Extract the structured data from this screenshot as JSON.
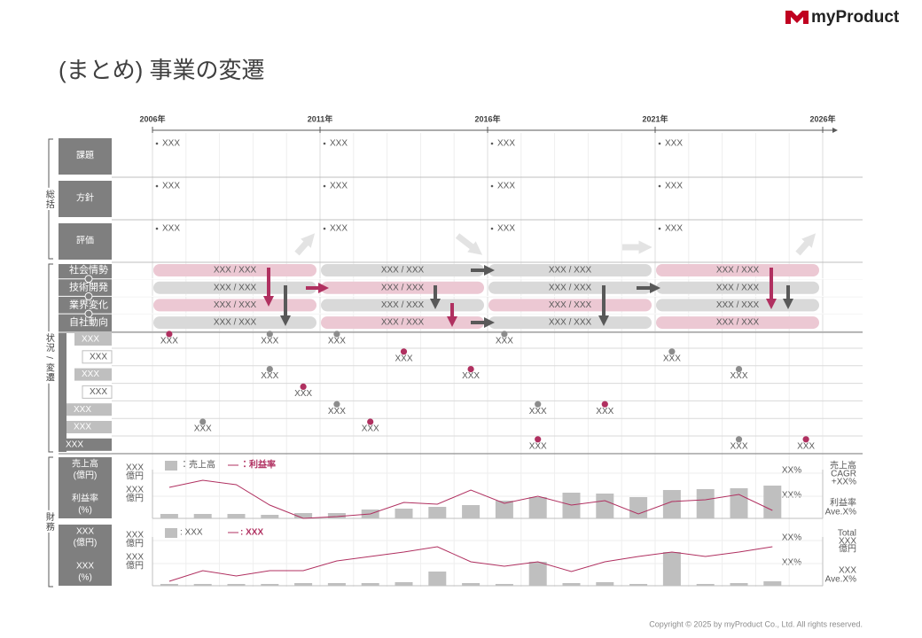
{
  "logo": "myProduct",
  "title": "(まとめ) 事業の変遷",
  "timeline": {
    "xlim": [
      2006,
      2026
    ],
    "xticks": [
      {
        "value": 2006,
        "label": "2006年"
      },
      {
        "value": 2011,
        "label": "2011年"
      },
      {
        "value": 2016,
        "label": "2016年"
      },
      {
        "value": 2021,
        "label": "2021年"
      },
      {
        "value": 2026,
        "label": "2026年"
      }
    ]
  },
  "sections": {
    "summary": "総括",
    "status": "状況 / 変遷",
    "finance": "財務"
  },
  "summary_rows": [
    {
      "label": "課題",
      "items": [
        "XXX",
        "XXX",
        "XXX",
        "XXX"
      ]
    },
    {
      "label": "方針",
      "items": [
        "XXX",
        "XXX",
        "XXX",
        "XXX"
      ]
    },
    {
      "label": "評価",
      "items": [
        "XXX",
        "XXX",
        "XXX",
        "XXX"
      ]
    }
  ],
  "status_rows": [
    {
      "label": "社会情勢",
      "bars": [
        {
          "text": "XXX / XXX",
          "color": "#ecc8d3"
        },
        {
          "text": "XXX / XXX",
          "color": "#d9d9d9"
        },
        {
          "text": "XXX / XXX",
          "color": "#d9d9d9"
        },
        {
          "text": "XXX / XXX",
          "color": "#ecc8d3"
        }
      ]
    },
    {
      "label": "技術開発",
      "bars": [
        {
          "text": "XXX / XXX",
          "color": "#d9d9d9"
        },
        {
          "text": "XXX / XXX",
          "color": "#ecc8d3"
        },
        {
          "text": "XXX / XXX",
          "color": "#d9d9d9"
        },
        {
          "text": "XXX / XXX",
          "color": "#d9d9d9"
        }
      ]
    },
    {
      "label": "業界変化",
      "bars": [
        {
          "text": "XXX / XXX",
          "color": "#ecc8d3"
        },
        {
          "text": "XXX / XXX",
          "color": "#d9d9d9"
        },
        {
          "text": "XXX / XXX",
          "color": "#ecc8d3"
        },
        {
          "text": "XXX / XXX",
          "color": "#d9d9d9"
        }
      ]
    },
    {
      "label": "自社動向",
      "bars": [
        {
          "text": "XXX / XXX",
          "color": "#d9d9d9"
        },
        {
          "text": "XXX / XXX",
          "color": "#ecc8d3"
        },
        {
          "text": "XXX / XXX",
          "color": "#d9d9d9"
        },
        {
          "text": "XXX / XXX",
          "color": "#ecc8d3"
        }
      ]
    }
  ],
  "events": [
    {
      "label": "XXX",
      "points": [
        {
          "year": 2006.5,
          "label": "XXX",
          "color": "#b03060"
        },
        {
          "year": 2009.5,
          "label": "XXX",
          "color": "#8c8c8c"
        },
        {
          "year": 2011.5,
          "label": "XXX",
          "color": "#8c8c8c"
        },
        {
          "year": 2016.5,
          "label": "XXX",
          "color": "#8c8c8c"
        }
      ]
    },
    {
      "label": "XXX",
      "points": [
        {
          "year": 2013.5,
          "label": "XXX",
          "color": "#b03060"
        },
        {
          "year": 2021.5,
          "label": "XXX",
          "color": "#8c8c8c"
        }
      ]
    },
    {
      "label": "XXX",
      "points": [
        {
          "year": 2009.5,
          "label": "XXX",
          "color": "#8c8c8c"
        },
        {
          "year": 2015.5,
          "label": "XXX",
          "color": "#b03060"
        },
        {
          "year": 2023.5,
          "label": "XXX",
          "color": "#8c8c8c"
        }
      ]
    },
    {
      "label": "XXX",
      "points": [
        {
          "year": 2010.5,
          "label": "XXX",
          "color": "#b03060"
        }
      ]
    },
    {
      "label": "XXX",
      "points": [
        {
          "year": 2011.5,
          "label": "XXX",
          "color": "#8c8c8c"
        },
        {
          "year": 2017.5,
          "label": "XXX",
          "color": "#8c8c8c"
        },
        {
          "year": 2019.5,
          "label": "XXX",
          "color": "#b03060"
        }
      ]
    },
    {
      "label": "XXX",
      "points": [
        {
          "year": 2007.5,
          "label": "XXX",
          "color": "#8c8c8c"
        },
        {
          "year": 2012.5,
          "label": "XXX",
          "color": "#b03060"
        }
      ]
    },
    {
      "label": "XXX",
      "points": [
        {
          "year": 2017.5,
          "label": "XXX",
          "color": "#b03060"
        },
        {
          "year": 2023.5,
          "label": "XXX",
          "color": "#8c8c8c"
        },
        {
          "year": 2025.5,
          "label": "XXX",
          "color": "#b03060"
        }
      ]
    }
  ],
  "finance": [
    {
      "type": "bar_line",
      "left_labels": [
        "売上高",
        "(億円)",
        "利益率",
        "(%)"
      ],
      "bar_axis_labels": [
        [
          "XXX",
          "億円"
        ],
        [
          "XXX",
          "億円"
        ]
      ],
      "line_axis_labels": [
        "XX%",
        "XX%"
      ],
      "right_notes": [
        "売上高",
        "CAGR",
        "+XX%",
        "利益率",
        "Ave.X%"
      ],
      "ylim": [
        0,
        60
      ],
      "series": [
        {
          "name": "：売上高",
          "kind": "bar",
          "color": "#bfbfbf",
          "values": [
            5,
            5,
            5,
            4,
            6,
            6,
            10,
            11,
            13,
            15,
            20,
            24,
            29,
            28,
            24,
            32,
            33,
            34,
            37
          ]
        },
        {
          "name": "：利益率",
          "kind": "line",
          "color": "#b03060",
          "values": [
            35,
            43,
            38,
            15,
            0,
            2,
            5,
            18,
            16,
            32,
            17,
            25,
            15,
            20,
            5,
            19,
            21,
            27,
            9
          ]
        }
      ]
    },
    {
      "type": "bar_line",
      "left_labels": [
        "XXX",
        "(億円)",
        "XXX",
        "(%)"
      ],
      "bar_axis_labels": [
        [
          "XXX",
          "億円"
        ],
        [
          "XXX",
          "億円"
        ]
      ],
      "line_axis_labels": [
        "XX%",
        "XX%"
      ],
      "right_notes": [
        "Total",
        "XXX",
        "億円",
        "XXX",
        "Ave.X%"
      ],
      "ylim": [
        0,
        60
      ],
      "series": [
        {
          "name": ": XXX",
          "kind": "bar",
          "color": "#bfbfbf",
          "values": [
            2,
            2,
            2,
            2,
            3,
            3,
            3,
            4,
            16,
            3,
            2,
            27,
            3,
            4,
            2,
            38,
            2,
            3,
            5
          ]
        },
        {
          "name": ": XXX",
          "kind": "line",
          "color": "#b03060",
          "values": [
            5,
            17,
            11,
            17,
            17,
            28,
            33,
            38,
            44,
            27,
            22,
            27,
            16,
            27,
            33,
            38,
            33,
            38,
            44
          ]
        }
      ]
    }
  ],
  "copyright": "Copyright © 2025 by myProduct Co., Ltd.  All rights reserved."
}
